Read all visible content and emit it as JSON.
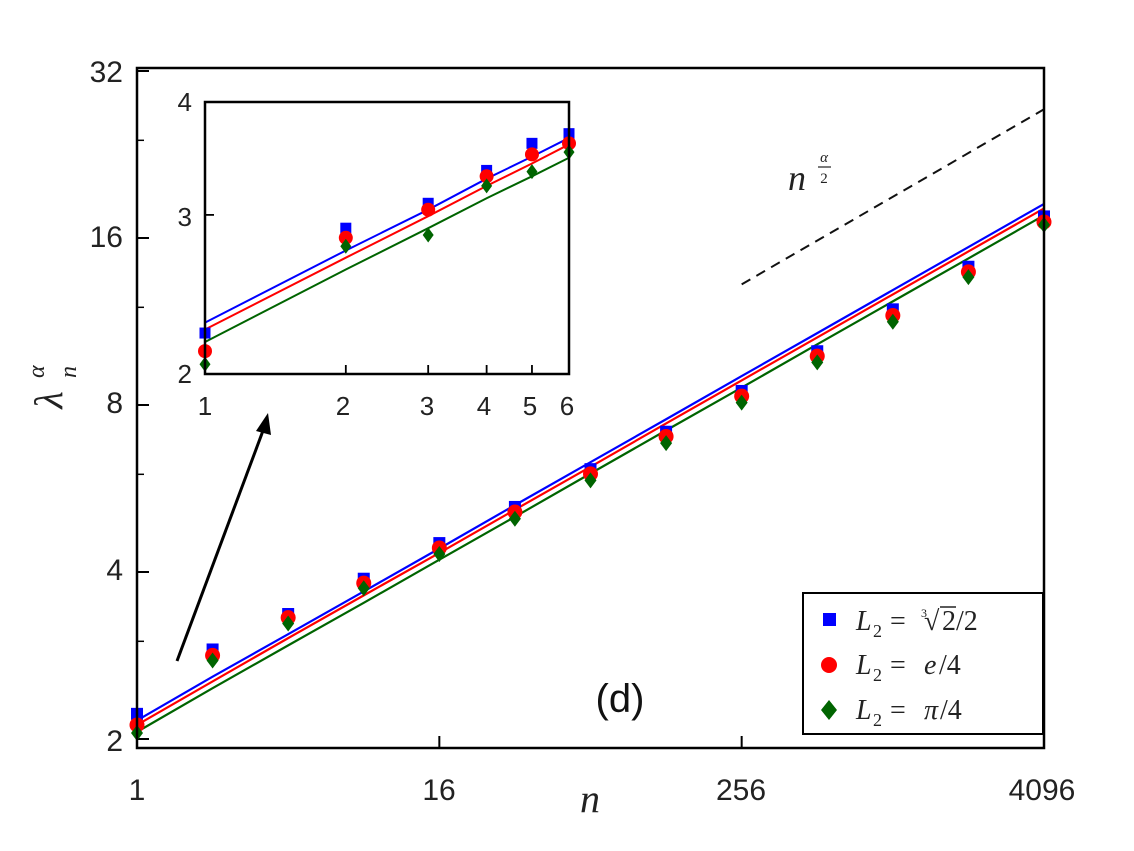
{
  "chart_data": [
    {
      "type": "scatter",
      "panel_label": "(d)",
      "xlabel": "n",
      "ylabel": "λ_n^α",
      "xscale": "log2",
      "yscale": "log2",
      "xlim": [
        1,
        4096
      ],
      "ylim": [
        1.9,
        32
      ],
      "xticks": [
        1,
        16,
        256,
        4096
      ],
      "xtick_labels": [
        "1",
        "16",
        "256",
        "4096"
      ],
      "yticks": [
        2,
        4,
        8,
        16,
        32
      ],
      "ytick_labels": [
        "2",
        "4",
        "8",
        "16",
        "32"
      ],
      "x": [
        1,
        2,
        4,
        8,
        16,
        32,
        64,
        128,
        256,
        512,
        1024,
        2048,
        4096
      ],
      "series": [
        {
          "name": "L₂ = ∛2/2",
          "color": "#0000ff",
          "marker": "square",
          "values": [
            2.22,
            2.9,
            3.36,
            3.89,
            4.51,
            5.24,
            6.13,
            7.16,
            8.48,
            10.0,
            11.9,
            14.2,
            17.5
          ],
          "fit": [
            2.16,
            2.59,
            3.09,
            3.69,
            4.41,
            5.28,
            6.31,
            7.54,
            9.02,
            10.78,
            12.89,
            15.41,
            18.43
          ]
        },
        {
          "name": "L₂ = e/4",
          "color": "#ff0000",
          "marker": "circle",
          "values": [
            2.12,
            2.83,
            3.31,
            3.82,
            4.42,
            5.13,
            6.01,
            7.02,
            8.3,
            9.8,
            11.6,
            13.9,
            17.1
          ],
          "fit": [
            2.12,
            2.54,
            3.04,
            3.63,
            4.33,
            5.18,
            6.19,
            7.41,
            8.86,
            10.59,
            12.66,
            15.13,
            18.09
          ]
        },
        {
          "name": "L₂ = π/4",
          "color": "#006400",
          "marker": "diamond",
          "values": [
            2.05,
            2.77,
            3.23,
            3.74,
            4.31,
            4.99,
            5.85,
            6.83,
            8.08,
            9.55,
            11.3,
            13.6,
            16.9
          ],
          "fit": [
            2.06,
            2.47,
            2.95,
            3.52,
            4.21,
            5.03,
            6.02,
            7.2,
            8.6,
            10.29,
            12.3,
            14.7,
            17.58
          ]
        }
      ],
      "reference_line": {
        "label": "n^(α/2)",
        "x": [
          256,
          4096
        ],
        "y": [
          13.2,
          27.3
        ],
        "style": "dashed"
      },
      "legend": {
        "placement": "bottom-right"
      },
      "inset": {
        "xlim": [
          1,
          6
        ],
        "ylim": [
          2,
          4
        ],
        "xscale": "log2",
        "yscale": "log2",
        "xticks": [
          1,
          2,
          3,
          4,
          5,
          6
        ],
        "xtick_labels": [
          "1",
          "2",
          "3",
          "4",
          "5",
          "6"
        ],
        "yticks": [
          2,
          3,
          4
        ],
        "ytick_labels": [
          "2",
          "3",
          "4"
        ],
        "x": [
          1,
          2,
          3,
          4,
          5,
          6
        ],
        "series": [
          {
            "name": "L₂ = ∛2/2",
            "values": [
              2.22,
              2.9,
              3.09,
              3.36,
              3.6,
              3.69
            ],
            "fit": [
              2.28,
              2.74,
              3.04,
              3.29,
              3.48,
              3.65
            ]
          },
          {
            "name": "L₂ = e/4",
            "values": [
              2.12,
              2.83,
              3.04,
              3.31,
              3.5,
              3.6
            ],
            "fit": [
              2.24,
              2.69,
              2.99,
              3.23,
              3.42,
              3.59
            ]
          },
          {
            "name": "L₂ = π/4",
            "values": [
              2.05,
              2.77,
              2.85,
              3.23,
              3.35,
              3.52
            ],
            "fit": [
              2.17,
              2.61,
              2.9,
              3.13,
              3.31,
              3.47
            ]
          }
        ]
      }
    }
  ]
}
